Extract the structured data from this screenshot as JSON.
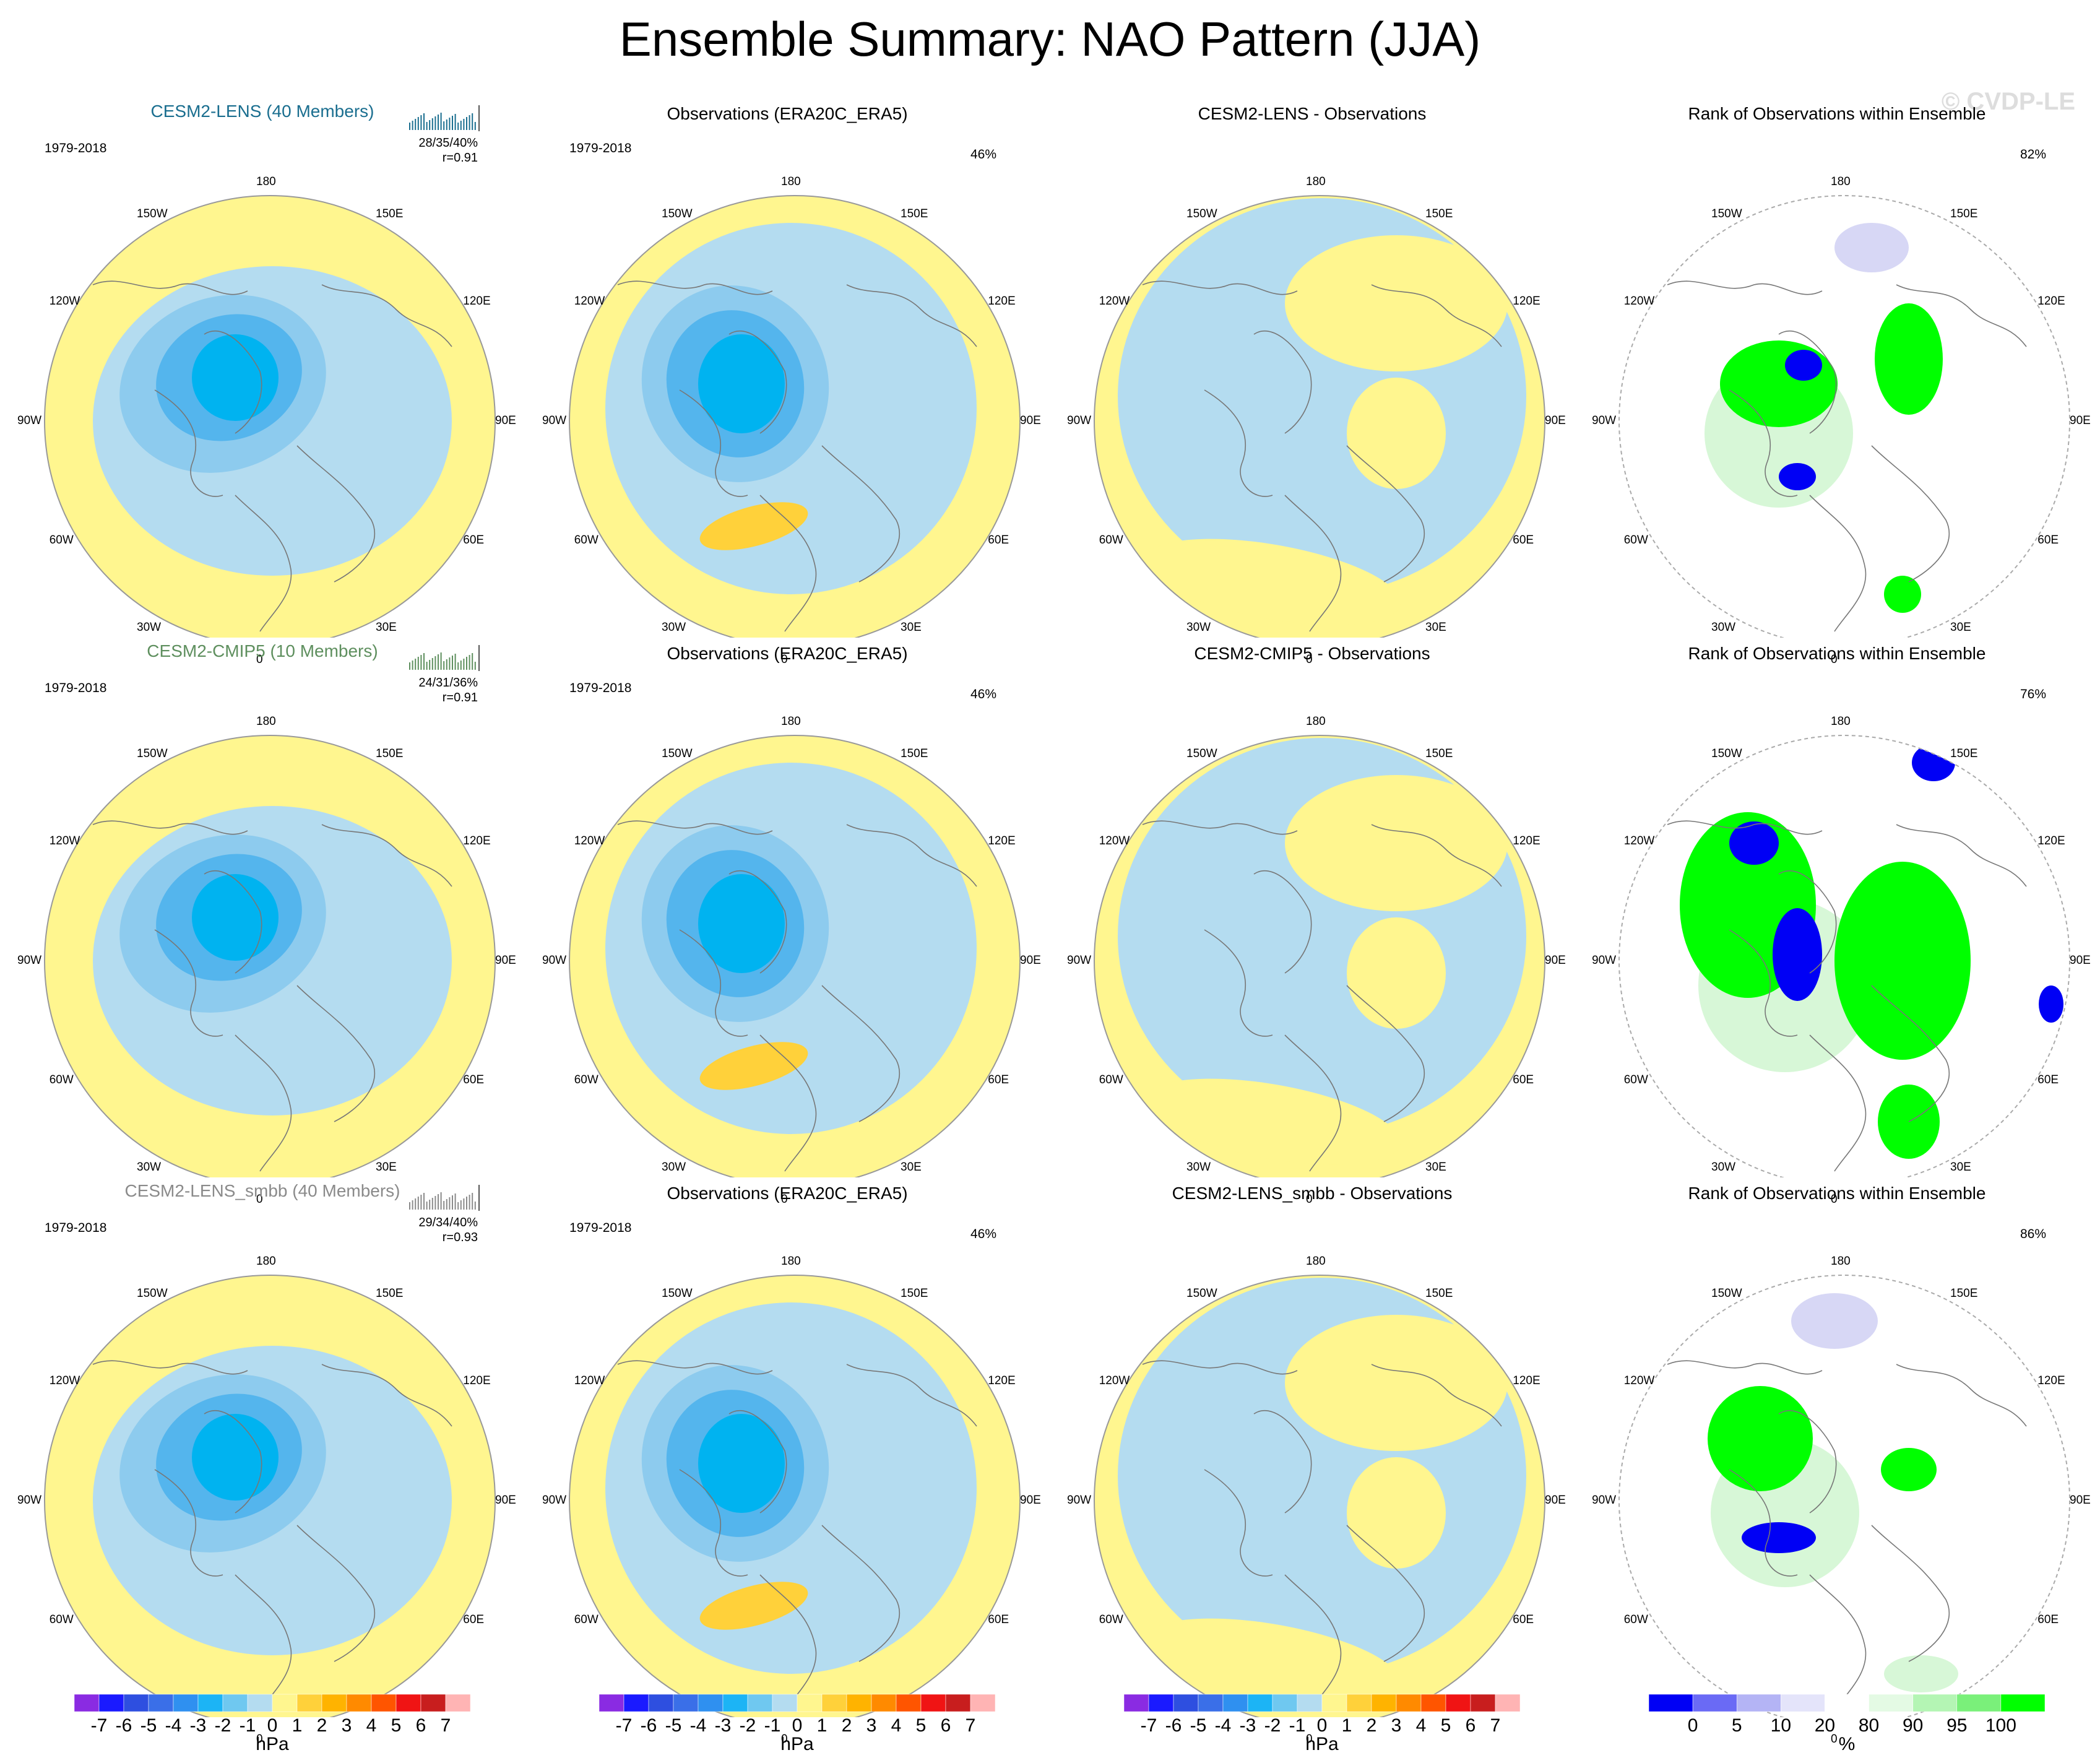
{
  "title": "Ensemble Summary: NAO Pattern (JJA)",
  "watermark": "© CVDP-LE",
  "period": "1979-2018",
  "lon_labels": [
    "180",
    "150E",
    "120E",
    "90E",
    "60E",
    "30E",
    "0",
    "30W",
    "60W",
    "90W",
    "120W",
    "150W"
  ],
  "colors": {
    "land_yellow": "#fff68f",
    "ocean_blue": "#b4dcf0",
    "neg1": "#8dcbee",
    "neg2": "#54b5ed",
    "neg3": "#00b3f0",
    "pos2": "#ffd13a",
    "rank_green": "#00ff00",
    "rank_blue": "#0000f5",
    "rank_lightblue": "#d7d7f5",
    "rank_lightgreen": "#d7f7d7"
  },
  "rows": [
    {
      "model_title": "CESM2-LENS (40 Members)",
      "model_title_color": "#1a6e8f",
      "stats": "28/35/40%",
      "corr": "r=0.91",
      "obs_title": "Observations (ERA20C_ERA5)",
      "obs_pct": "46%",
      "diff_title": "CESM2-LENS - Observations",
      "rank_title": "Rank of Observations within Ensemble",
      "rank_pct": "82%"
    },
    {
      "model_title": "CESM2-CMIP5 (10 Members)",
      "model_title_color": "#5e8f5e",
      "stats": "24/31/36%",
      "corr": "r=0.91",
      "obs_title": "Observations (ERA20C_ERA5)",
      "obs_pct": "46%",
      "diff_title": "CESM2-CMIP5 - Observations",
      "rank_title": "Rank of Observations within Ensemble",
      "rank_pct": "76%"
    },
    {
      "model_title": "CESM2-LENS_smbb (40 Members)",
      "model_title_color": "#8a8a8a",
      "stats": "29/34/40%",
      "corr": "r=0.93",
      "obs_title": "Observations (ERA20C_ERA5)",
      "obs_pct": "46%",
      "diff_title": "CESM2-LENS_smbb - Observations",
      "rank_title": "Rank of Observations within Ensemble",
      "rank_pct": "86%"
    }
  ],
  "colorbar_hpa": {
    "units": "hPa",
    "ticks": [
      "-7",
      "-6",
      "-5",
      "-4",
      "-3",
      "-2",
      "-1",
      "0",
      "1",
      "2",
      "3",
      "4",
      "5",
      "6",
      "7"
    ],
    "colors": [
      "#8a2be2",
      "#1a1aff",
      "#2e4fe0",
      "#3a6fe8",
      "#2f90f0",
      "#1cb4f5",
      "#6fc8f0",
      "#b4dcf0",
      "#fff68f",
      "#ffd13a",
      "#ffb300",
      "#ff8a00",
      "#ff5500",
      "#f01414",
      "#c81e1e",
      "#ffb4b4"
    ]
  },
  "colorbar_pct": {
    "units": "%",
    "ticks": [
      "0",
      "5",
      "10",
      "20",
      "80",
      "90",
      "95",
      "100"
    ],
    "colors": [
      "#0000f5",
      "#6a6af5",
      "#b4b4f5",
      "#e4e4fa",
      "#ffffff",
      "#e4fae4",
      "#b4f5b4",
      "#7af07a",
      "#00ff00"
    ]
  }
}
